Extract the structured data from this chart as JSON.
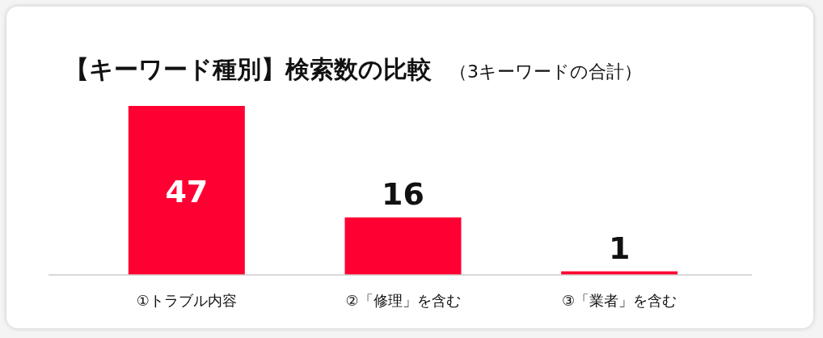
{
  "chart_data": {
    "type": "bar",
    "title": "【キーワード種別】検索数の比較",
    "subtitle": "（3キーワードの合計）",
    "categories": [
      "①トラブル内容",
      "②「修理」を含む",
      "③「業者」を含む"
    ],
    "values": [
      47,
      16,
      1
    ],
    "color": "#ff0033",
    "data_labels": true
  }
}
